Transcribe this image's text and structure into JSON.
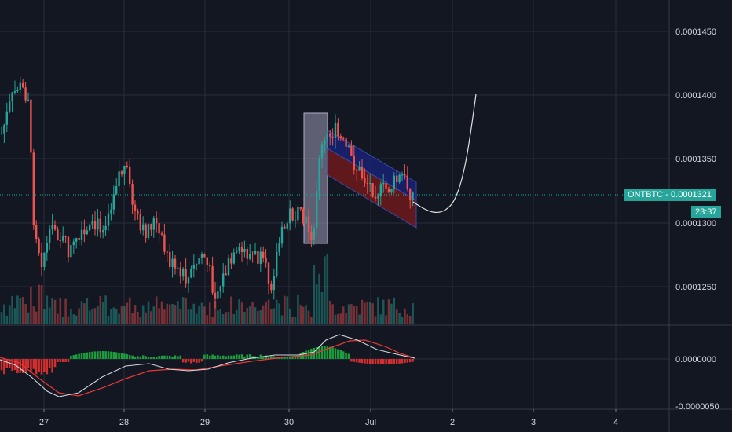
{
  "chart_data": {
    "type": "candlestick",
    "symbol": "ONTBTC",
    "last_price": "0.0001321",
    "countdown": "23:37",
    "price_axis": {
      "ticks": [
        "0.0001450",
        "0.0001400",
        "0.0001350",
        "0.0001300",
        "0.0001250"
      ],
      "ylim": [
        0.000119,
        0.0001485
      ]
    },
    "macd_axis": {
      "ticks": [
        "0.0000000",
        "-0.0000050"
      ]
    },
    "time_axis": {
      "ticks": [
        "27",
        "28",
        "29",
        "30",
        "Jul",
        "2",
        "3",
        "4"
      ]
    },
    "colors": {
      "up": "#26a69a",
      "down": "#ef5350",
      "background": "#131722",
      "grid": "#2a2e39",
      "price_line": "#26a69a",
      "macd_line": "#d1d4dc",
      "signal_line": "#e53935",
      "channel_upper": "#1a237e",
      "channel_lower": "#7f1a1a",
      "flag_pole": "#7e7a9a",
      "projection": "#e0e0e0"
    },
    "annotations": [
      "flag pole rectangle",
      "descending parallel channel",
      "projected curve"
    ]
  }
}
